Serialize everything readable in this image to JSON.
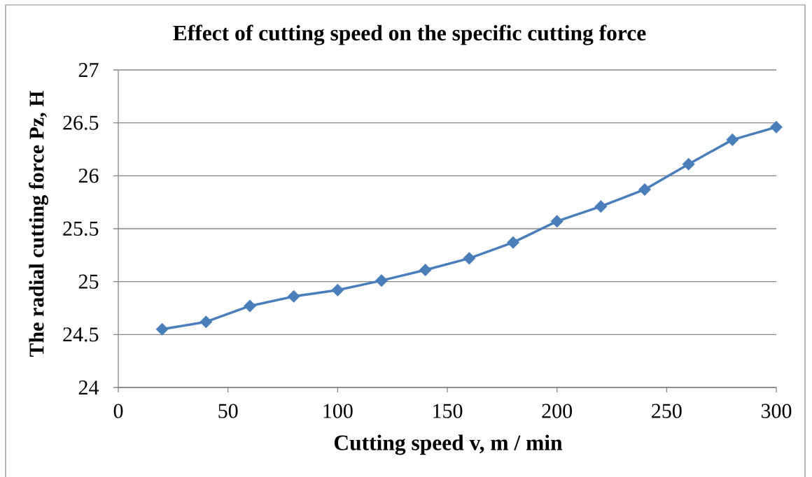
{
  "chart_data": {
    "type": "line",
    "title": "Effect of cutting speed on the specific cutting force",
    "xlabel": "Cutting speed v, m / min",
    "ylabel": "The radial cutting force Pz, H",
    "x": [
      20,
      40,
      60,
      80,
      100,
      120,
      140,
      160,
      180,
      200,
      220,
      240,
      260,
      280,
      300
    ],
    "values": [
      24.55,
      24.62,
      24.77,
      24.86,
      24.92,
      25.01,
      25.11,
      25.22,
      25.37,
      25.57,
      25.71,
      25.87,
      26.11,
      26.34,
      26.46
    ],
    "color": "#4a7ebb",
    "xlim": [
      0,
      300
    ],
    "ylim": [
      24,
      27
    ],
    "xticks": [
      0,
      50,
      100,
      150,
      200,
      250,
      300
    ],
    "yticks": [
      24,
      24.5,
      25,
      25.5,
      26,
      26.5,
      27
    ],
    "grid": "y",
    "marker": "diamond",
    "line_style": "solid"
  }
}
